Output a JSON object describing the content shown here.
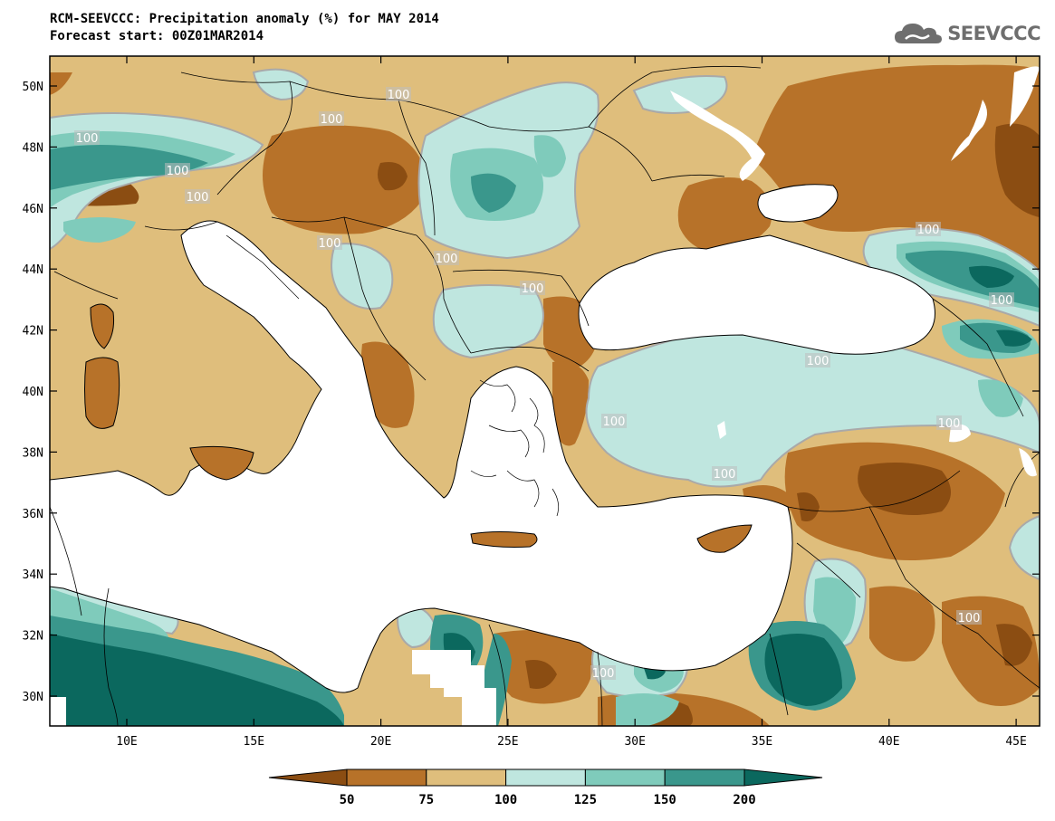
{
  "header": {
    "title": "RCM-SEEVCCC: Precipitation anomaly (%) for MAY 2014",
    "subtitle": "Forecast start: 00Z01MAR2014"
  },
  "logo": {
    "text": "SEEVCCC",
    "icon": "cloud-icon"
  },
  "map": {
    "lat_labels": [
      "50N",
      "48N",
      "46N",
      "44N",
      "42N",
      "40N",
      "38N",
      "36N",
      "34N",
      "32N",
      "30N"
    ],
    "lon_labels": [
      "10E",
      "15E",
      "20E",
      "25E",
      "30E",
      "35E",
      "40E",
      "45E"
    ],
    "contour_labels": [
      "100",
      "100",
      "100",
      "100",
      "100",
      "100",
      "100",
      "100",
      "100",
      "100",
      "100",
      "100",
      "100",
      "100",
      "100",
      "100"
    ]
  },
  "colorbar": {
    "labels": [
      "50",
      "75",
      "100",
      "125",
      "150",
      "200"
    ],
    "colors": [
      "#8b4d12",
      "#b77229",
      "#dfbe7c",
      "#bfe6df",
      "#7fcbbb",
      "#3a978c",
      "#0b685e"
    ]
  }
}
